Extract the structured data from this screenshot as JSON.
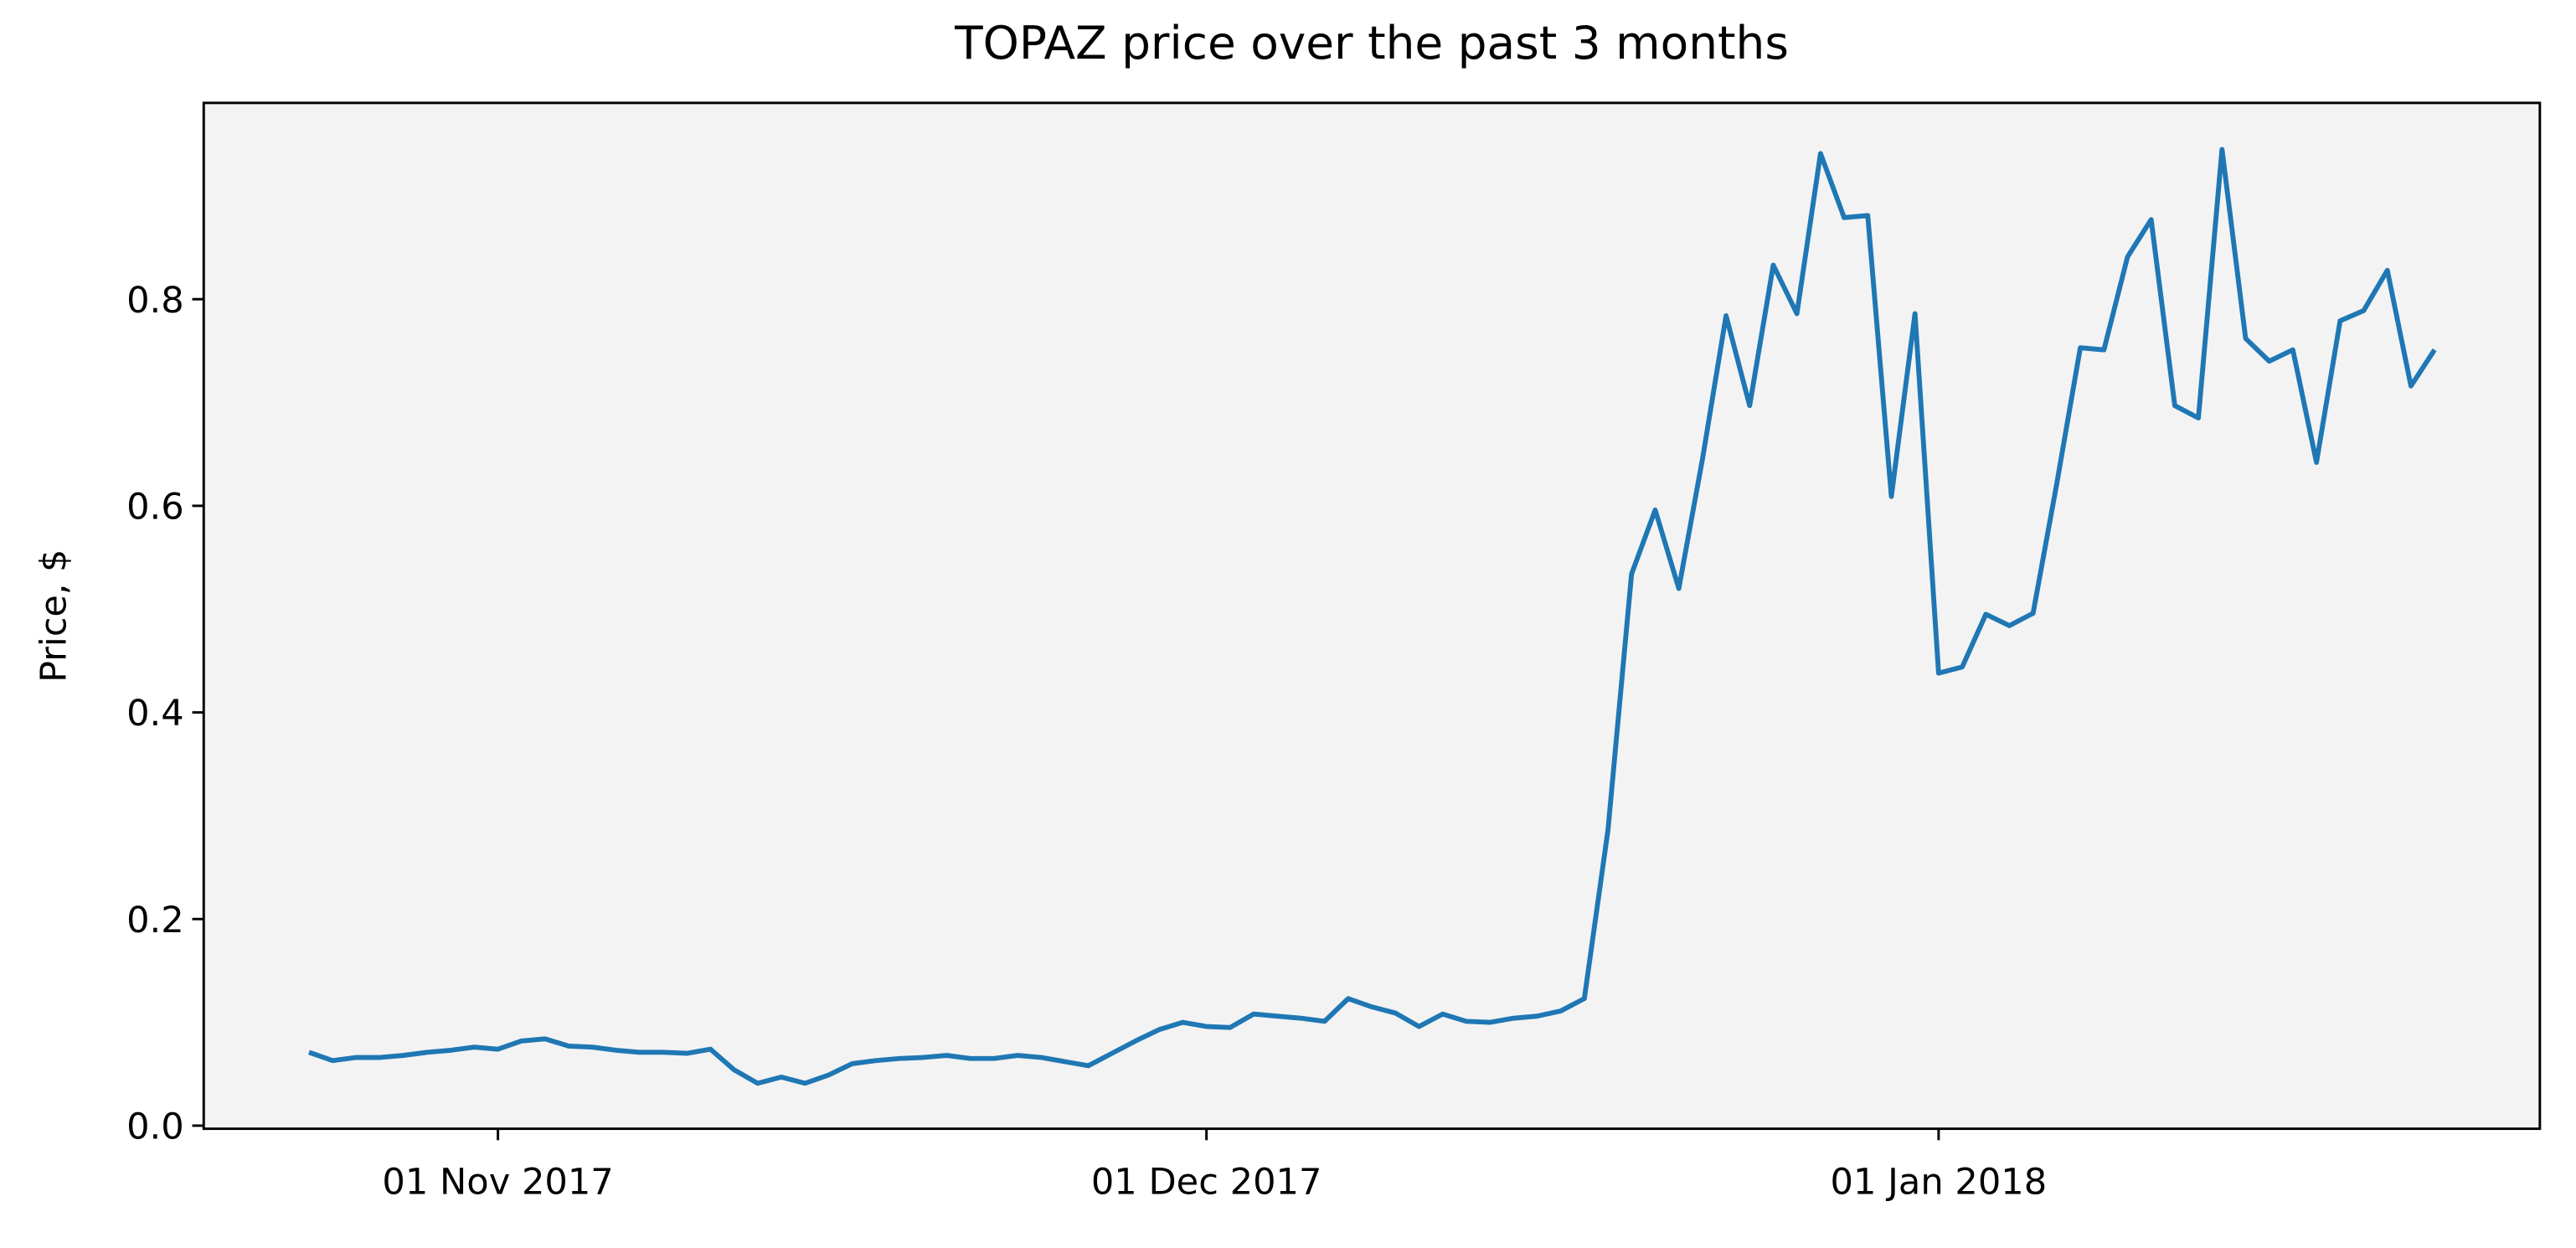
{
  "chart_data": {
    "type": "line",
    "title": "TOPAZ price over the past 3 months",
    "ylabel": "Price, $",
    "x": [
      "2017-10-24",
      "2017-10-25",
      "2017-10-26",
      "2017-10-27",
      "2017-10-28",
      "2017-10-29",
      "2017-10-30",
      "2017-10-31",
      "2017-11-01",
      "2017-11-02",
      "2017-11-03",
      "2017-11-04",
      "2017-11-05",
      "2017-11-06",
      "2017-11-07",
      "2017-11-08",
      "2017-11-09",
      "2017-11-10",
      "2017-11-11",
      "2017-11-12",
      "2017-11-13",
      "2017-11-14",
      "2017-11-15",
      "2017-11-16",
      "2017-11-17",
      "2017-11-18",
      "2017-11-19",
      "2017-11-20",
      "2017-11-21",
      "2017-11-22",
      "2017-11-23",
      "2017-11-24",
      "2017-11-25",
      "2017-11-26",
      "2017-11-27",
      "2017-11-28",
      "2017-11-29",
      "2017-11-30",
      "2017-12-01",
      "2017-12-02",
      "2017-12-03",
      "2017-12-04",
      "2017-12-05",
      "2017-12-06",
      "2017-12-07",
      "2017-12-08",
      "2017-12-09",
      "2017-12-10",
      "2017-12-11",
      "2017-12-12",
      "2017-12-13",
      "2017-12-14",
      "2017-12-15",
      "2017-12-16",
      "2017-12-17",
      "2017-12-18",
      "2017-12-19",
      "2017-12-20",
      "2017-12-21",
      "2017-12-22",
      "2017-12-23",
      "2017-12-24",
      "2017-12-25",
      "2017-12-26",
      "2017-12-27",
      "2017-12-28",
      "2017-12-29",
      "2017-12-30",
      "2017-12-31",
      "2018-01-01",
      "2018-01-02",
      "2018-01-03",
      "2018-01-04",
      "2018-01-05",
      "2018-01-06",
      "2018-01-07",
      "2018-01-08",
      "2018-01-09",
      "2018-01-10",
      "2018-01-11",
      "2018-01-12",
      "2018-01-13",
      "2018-01-14",
      "2018-01-15",
      "2018-01-16",
      "2018-01-17",
      "2018-01-18",
      "2018-01-19",
      "2018-01-20",
      "2018-01-21",
      "2018-01-22"
    ],
    "series": [
      {
        "color": "#1f77b4",
        "values": [
          0.071,
          0.063,
          0.066,
          0.066,
          0.068,
          0.071,
          0.073,
          0.076,
          0.074,
          0.082,
          0.084,
          0.077,
          0.076,
          0.073,
          0.071,
          0.071,
          0.07,
          0.074,
          0.054,
          0.041,
          0.047,
          0.041,
          0.049,
          0.06,
          0.063,
          0.065,
          0.066,
          0.068,
          0.065,
          0.065,
          0.068,
          0.066,
          0.062,
          0.058,
          0.07,
          0.082,
          0.093,
          0.1,
          0.096,
          0.095,
          0.108,
          0.106,
          0.104,
          0.101,
          0.123,
          0.115,
          0.109,
          0.096,
          0.108,
          0.101,
          0.1,
          0.104,
          0.106,
          0.111,
          0.123,
          0.286,
          0.534,
          0.596,
          0.52,
          0.645,
          0.784,
          0.697,
          0.833,
          0.786,
          0.941,
          0.879,
          0.881,
          0.609,
          0.786,
          0.438,
          0.444,
          0.495,
          0.484,
          0.496,
          0.621,
          0.753,
          0.751,
          0.841,
          0.877,
          0.697,
          0.685,
          0.945,
          0.762,
          0.74,
          0.751,
          0.642,
          0.779,
          0.789,
          0.828,
          0.716,
          0.751
        ]
      }
    ],
    "xlim": [
      "2017-10-19T13:00",
      "2018-01-26T11:00"
    ],
    "xticks": [
      {
        "value": "2017-11-01",
        "label": "01 Nov 2017"
      },
      {
        "value": "2017-12-01",
        "label": "01 Dec 2017"
      },
      {
        "value": "2018-01-01",
        "label": "01 Jan 2018"
      }
    ],
    "ylim": [
      -0.003,
      0.99
    ],
    "yticks": [
      {
        "value": 0,
        "label": "0.0"
      },
      0.2,
      0.4,
      0.6,
      0.8
    ],
    "background": "#f3f3f3"
  }
}
